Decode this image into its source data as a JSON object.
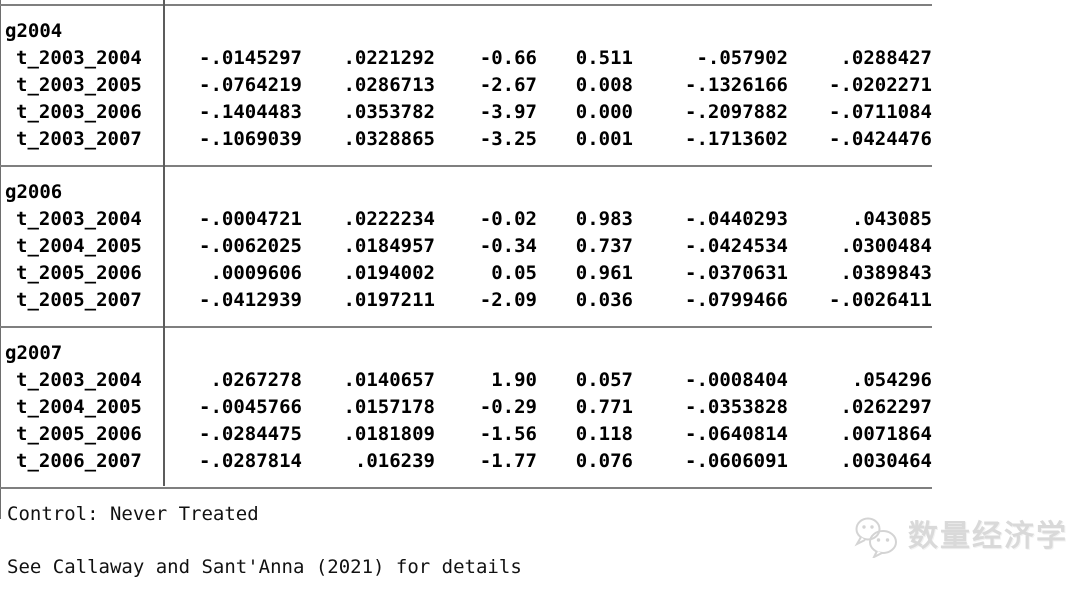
{
  "colors": {
    "text": "#000000",
    "rule": "#7f7f7f",
    "divider": "#5c5c5c",
    "watermark": "#d9d9d9"
  },
  "table": {
    "groups": [
      {
        "label": "g2004",
        "rows": [
          {
            "label": "t_2003_2004",
            "coef": "-.0145297",
            "std_err": ".0221292",
            "t": "-0.66",
            "p": "0.511",
            "ci_low": "-.057902",
            "ci_high": ".0288427"
          },
          {
            "label": "t_2003_2005",
            "coef": "-.0764219",
            "std_err": ".0286713",
            "t": "-2.67",
            "p": "0.008",
            "ci_low": "-.1326166",
            "ci_high": "-.0202271"
          },
          {
            "label": "t_2003_2006",
            "coef": "-.1404483",
            "std_err": ".0353782",
            "t": "-3.97",
            "p": "0.000",
            "ci_low": "-.2097882",
            "ci_high": "-.0711084"
          },
          {
            "label": "t_2003_2007",
            "coef": "-.1069039",
            "std_err": ".0328865",
            "t": "-3.25",
            "p": "0.001",
            "ci_low": "-.1713602",
            "ci_high": "-.0424476"
          }
        ]
      },
      {
        "label": "g2006",
        "rows": [
          {
            "label": "t_2003_2004",
            "coef": "-.0004721",
            "std_err": ".0222234",
            "t": "-0.02",
            "p": "0.983",
            "ci_low": "-.0440293",
            "ci_high": ".043085"
          },
          {
            "label": "t_2004_2005",
            "coef": "-.0062025",
            "std_err": ".0184957",
            "t": "-0.34",
            "p": "0.737",
            "ci_low": "-.0424534",
            "ci_high": ".0300484"
          },
          {
            "label": "t_2005_2006",
            "coef": ".0009606",
            "std_err": ".0194002",
            "t": "0.05",
            "p": "0.961",
            "ci_low": "-.0370631",
            "ci_high": ".0389843"
          },
          {
            "label": "t_2005_2007",
            "coef": "-.0412939",
            "std_err": ".0197211",
            "t": "-2.09",
            "p": "0.036",
            "ci_low": "-.0799466",
            "ci_high": "-.0026411"
          }
        ]
      },
      {
        "label": "g2007",
        "rows": [
          {
            "label": "t_2003_2004",
            "coef": ".0267278",
            "std_err": ".0140657",
            "t": "1.90",
            "p": "0.057",
            "ci_low": "-.0008404",
            "ci_high": ".054296"
          },
          {
            "label": "t_2004_2005",
            "coef": "-.0045766",
            "std_err": ".0157178",
            "t": "-0.29",
            "p": "0.771",
            "ci_low": "-.0353828",
            "ci_high": ".0262297"
          },
          {
            "label": "t_2005_2006",
            "coef": "-.0284475",
            "std_err": ".0181809",
            "t": "-1.56",
            "p": "0.118",
            "ci_low": "-.0640814",
            "ci_high": ".0071864"
          },
          {
            "label": "t_2006_2007",
            "coef": "-.0287814",
            "std_err": ".016239",
            "t": "-1.77",
            "p": "0.076",
            "ci_low": "-.0606091",
            "ci_high": ".0030464"
          }
        ]
      }
    ]
  },
  "footer": {
    "control_note": "Control: Never Treated",
    "reference_note": "See Callaway and Sant'Anna (2021) for details"
  },
  "watermark": {
    "icon": "wechat-logo-icon",
    "text": "数量经济学"
  }
}
